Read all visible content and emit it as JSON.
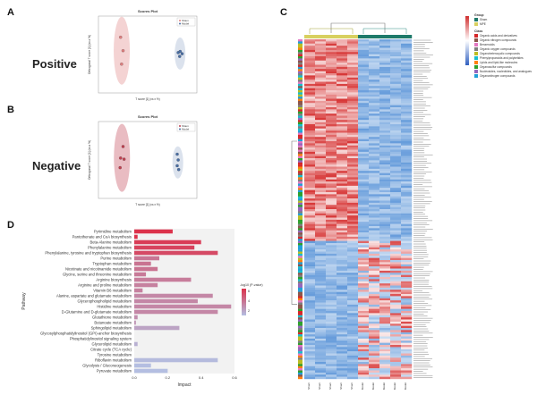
{
  "panel_letters": {
    "a": "A",
    "b": "B",
    "c": "C",
    "d": "D"
  },
  "side_labels": {
    "pos": "Positive",
    "neg": "Negative"
  },
  "chart_data": [
    {
      "panel": "A",
      "type": "scatter",
      "title": "Scores Plot",
      "xlabel": "T score [1] (xx.x %)",
      "ylabel": "Orthogonal T score [1] (xx.x %)",
      "legend": [
        "Sham",
        "Model"
      ],
      "legend_position": "top-right",
      "series": [
        {
          "name": "Sham",
          "color": "#e08080",
          "points": [
            [
              -0.55,
              0.45
            ],
            [
              -0.5,
              0.1
            ],
            [
              -0.53,
              -0.25
            ]
          ]
        },
        {
          "name": "Model",
          "color": "#4a6fa5",
          "points": [
            [
              0.62,
              0.05
            ],
            [
              0.65,
              -0.05
            ],
            [
              0.7,
              0.02
            ],
            [
              0.66,
              0.08
            ]
          ]
        }
      ]
    },
    {
      "panel": "B",
      "type": "scatter",
      "title": "Scores Plot",
      "xlabel": "T score [1] (xx.x %)",
      "ylabel": "Orthogonal T score [1] (xx.x %)",
      "legend": [
        "Sham",
        "Model"
      ],
      "legend_position": "top-right",
      "series": [
        {
          "name": "Sham",
          "color": "#c04050",
          "points": [
            [
              -0.5,
              0.35
            ],
            [
              -0.55,
              0.05
            ],
            [
              -0.48,
              0.02
            ],
            [
              -0.56,
              -0.2
            ]
          ]
        },
        {
          "name": "Model",
          "color": "#4a6fa5",
          "points": [
            [
              0.6,
              0.15
            ],
            [
              0.62,
              0.0
            ],
            [
              0.6,
              -0.15
            ],
            [
              0.63,
              -0.25
            ]
          ]
        }
      ]
    },
    {
      "panel": "C",
      "type": "heatmap",
      "rows_top": 95,
      "rows_bottom": 65,
      "cols": [
        "Sham",
        "Sham",
        "Sham",
        "Sham",
        "Sham",
        "Model",
        "Model",
        "Model",
        "Model",
        "Model"
      ],
      "legend_title_group": "Group",
      "legend_group": [
        "Sham",
        "MPE"
      ],
      "legend_title_class": "Class",
      "legend_class": [
        "Organic acids and derivatives",
        "Organic nitrogen compounds",
        "Benzenoids",
        "Organic oxygen compounds",
        "Organoheterocyclic compounds",
        "Phenylpropanoids and polyketides",
        "Lipids and lipid-like molecules",
        "Organosulfur compounds",
        "Nucleosides, nucleotides, and analogues",
        "Organonitrogen compounds"
      ],
      "class_colors": [
        "#d62728",
        "#8c564b",
        "#e377c2",
        "#7f7f7f",
        "#bcbd22",
        "#17becf",
        "#ff7f0e",
        "#2ca02c",
        "#9467bd",
        "#1f9fd8"
      ]
    },
    {
      "panel": "D",
      "type": "bar",
      "orientation": "horizontal",
      "ylabel": "Pathway",
      "xlabel": "Impact",
      "xlim": [
        0,
        0.6
      ],
      "xticks": [
        "0.0",
        "0.2",
        "0.4",
        "0.6"
      ],
      "legend_title": "-log10 (P-value)",
      "legend_ticks": [
        "6",
        "4",
        "2"
      ],
      "categories": [
        "Pyrimidine metabolism",
        "Pantothenate and CoA biosynthesis",
        "Beta-Alanine metabolism",
        "Phenylalanine metabolism",
        "Phenylalanine, tyrosine and tryptophan biosynthesis",
        "Purine metabolism",
        "Tryptophan metabolism",
        "Nicotinate and nicotinamide metabolism",
        "Glycine, serine and threonine metabolism",
        "Arginine biosynthesis",
        "Arginine and proline metabolism",
        "Vitamin B6 metabolism",
        "Alanine, aspartate and glutamate metabolism",
        "Glycerophospholipid metabolism",
        "Histidine metabolism",
        "D-Glutamine and D-glutamate metabolism",
        "Glutathione metabolism",
        "Butanoate metabolism",
        "Sphingolipid metabolism",
        "Glycosylphosphatidylinositol (GPI)-anchor biosynthesis",
        "Phosphatidylinositol signaling system",
        "Glycerolipid metabolism",
        "Citrate cycle (TCA cycle)",
        "Tyrosine metabolism",
        "Riboflavin metabolism",
        "Glycolysis / Gluconeogenesis",
        "Pyruvate metabolism"
      ],
      "values": [
        0.23,
        0.02,
        0.4,
        0.36,
        0.5,
        0.15,
        0.1,
        0.14,
        0.07,
        0.34,
        0.14,
        0.05,
        0.47,
        0.38,
        0.58,
        0.5,
        0.02,
        0.01,
        0.27,
        0.0,
        0.0,
        0.02,
        0.0,
        0.0,
        0.5,
        0.1,
        0.2
      ],
      "neglogp": [
        5.5,
        5.5,
        5.2,
        5.0,
        4.8,
        3.5,
        3.6,
        3.6,
        3.4,
        3.3,
        3.2,
        3.2,
        3.0,
        3.0,
        3.0,
        3.0,
        2.8,
        2.6,
        2.2,
        2.0,
        2.0,
        1.8,
        1.6,
        1.6,
        1.5,
        1.4,
        1.4
      ]
    }
  ]
}
